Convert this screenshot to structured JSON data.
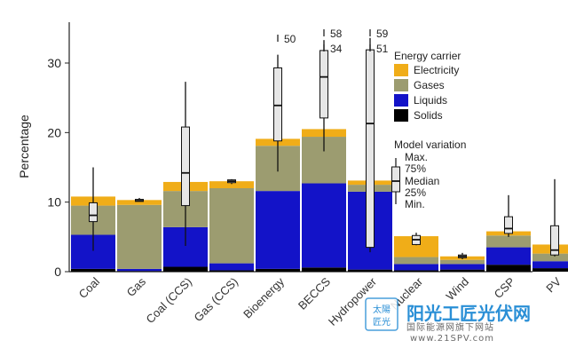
{
  "chart_data": {
    "type": "bar",
    "stacked": true,
    "ylabel": "Percentage",
    "ylim": [
      0,
      35
    ],
    "yticks": [
      0,
      10,
      20,
      30
    ],
    "categories": [
      "Coal",
      "Gas",
      "Coal (CCS)",
      "Gas (CCS)",
      "Bioenergy",
      "BECCS",
      "Hydropower",
      "Nuclear",
      "Wind",
      "CSP",
      "PV"
    ],
    "series": [
      {
        "name": "Solids",
        "color": "#000000",
        "values": [
          0.4,
          0.1,
          0.7,
          0.2,
          0.4,
          0.6,
          0.3,
          0.2,
          0.3,
          1.0,
          0.5
        ]
      },
      {
        "name": "Liquids",
        "color": "#1313c8",
        "values": [
          4.9,
          0.3,
          5.7,
          1.0,
          11.2,
          12.1,
          11.2,
          0.9,
          0.8,
          2.5,
          1.0
        ]
      },
      {
        "name": "Gases",
        "color": "#9c9c70",
        "values": [
          4.2,
          9.2,
          5.2,
          10.8,
          6.5,
          6.7,
          1.0,
          1.0,
          0.6,
          1.7,
          1.1
        ]
      },
      {
        "name": "Electricity",
        "color": "#f0ad18",
        "values": [
          1.3,
          0.7,
          1.3,
          1.0,
          1.0,
          1.1,
          0.6,
          3.0,
          0.5,
          0.6,
          1.3
        ]
      }
    ],
    "model_variation": [
      {
        "category": "Coal",
        "min": 3,
        "q1": 7.2,
        "median": 8.1,
        "q3": 9.9,
        "max": 15
      },
      {
        "category": "Gas",
        "min": 10.1,
        "q1": 10.1,
        "median": 10.2,
        "q3": 10.4,
        "max": 10.6
      },
      {
        "category": "Coal (CCS)",
        "min": 3.7,
        "q1": 9.5,
        "median": 14.2,
        "q3": 20.8,
        "max": 27.3
      },
      {
        "category": "Gas (CCS)",
        "min": 12.6,
        "q1": 12.8,
        "median": 13,
        "q3": 13.2,
        "max": 13.3
      },
      {
        "category": "Bioenergy",
        "min": 14.4,
        "q1": 18.8,
        "median": 23.9,
        "q3": 29.3,
        "max": 31.2,
        "outlier_label": "50"
      },
      {
        "category": "BECCS",
        "min": 17.3,
        "q1": 22.1,
        "median": 28,
        "q3": 31.8,
        "max": 33.3,
        "outlier_labels": [
          "58",
          "34"
        ]
      },
      {
        "category": "Hydropower",
        "min": 2.8,
        "q1": 3.5,
        "median": 21.3,
        "q3": 31.9,
        "max": 33.6,
        "outlier_labels": [
          "59",
          "51"
        ]
      },
      {
        "category": "Nuclear",
        "min": 3.8,
        "q1": 3.9,
        "median": 4.6,
        "q3": 5.2,
        "max": 5.6
      },
      {
        "category": "Wind",
        "min": 1.8,
        "q1": 2,
        "median": 2.2,
        "q3": 2.4,
        "max": 2.7
      },
      {
        "category": "CSP",
        "min": 5,
        "q1": 5.5,
        "median": 6.2,
        "q3": 7.9,
        "max": 11
      },
      {
        "category": "PV",
        "min": 2.2,
        "q1": 2.4,
        "median": 3.1,
        "q3": 6.6,
        "max": 13.3
      }
    ],
    "legend": {
      "title": "Energy carrier",
      "items": [
        "Electricity",
        "Gases",
        "Liquids",
        "Solids"
      ],
      "placement": "top-right"
    },
    "variation_legend": {
      "title": "Model variation",
      "labels": [
        "Max.",
        "75%",
        "Median",
        "25%",
        "Min."
      ]
    }
  },
  "watermark": {
    "brand": "阳光工匠光伏网",
    "url": "www.21SPV.com",
    "stamp_top": "太陽",
    "stamp_bottom": "匠光",
    "tagline": "国际能源网旗下网站"
  }
}
